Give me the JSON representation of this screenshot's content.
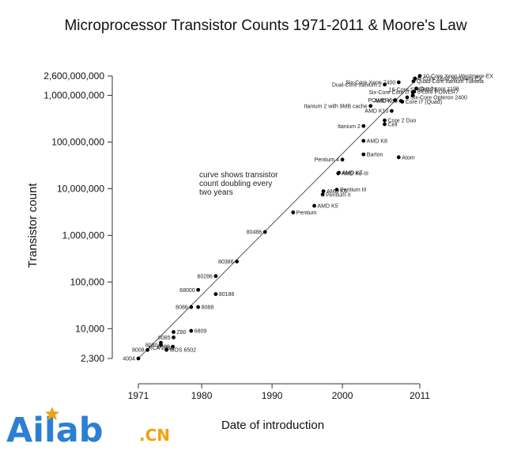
{
  "chart_data": {
    "type": "scatter",
    "title": "Microprocessor Transistor Counts 1971-2011 & Moore's Law",
    "xlabel": "Date of introduction",
    "ylabel": "Transistor count",
    "scale_y": "log",
    "xlim": [
      1971,
      2011
    ],
    "ylim": [
      2300,
      2600000000
    ],
    "x_ticks": [
      "1971",
      "1980",
      "1990",
      "2000",
      "2011"
    ],
    "x_tick_values": [
      1971,
      1980,
      1990,
      2000,
      2011
    ],
    "y_ticks": [
      "2,300",
      "10,000",
      "100,000",
      "1,000,000",
      "10,000,000",
      "100,000,000",
      "1,000,000,000",
      "2,600,000,000"
    ],
    "y_tick_values": [
      2300,
      10000,
      100000,
      1000000,
      10000000,
      100000000,
      1000000000,
      2600000000
    ],
    "annotation": [
      "curve shows transistor",
      "count doubling every",
      "two years"
    ],
    "trend": {
      "x": [
        1971,
        2011
      ],
      "y": [
        2300,
        2600000000
      ]
    },
    "grid": false,
    "points": [
      {
        "label": "4004",
        "x": 1971,
        "y": 2300,
        "side": "left"
      },
      {
        "label": "8008",
        "x": 1972.3,
        "y": 3500,
        "side": "left"
      },
      {
        "label": "8080",
        "x": 1974.2,
        "y": 4500,
        "side": "left"
      },
      {
        "label": "RCA 1802",
        "x": 1974.2,
        "y": 5000,
        "side": "below"
      },
      {
        "label": "MOS 6502",
        "x": 1975,
        "y": 3510,
        "side": "right"
      },
      {
        "label": "6800",
        "x": 1975.9,
        "y": 4100,
        "side": "left"
      },
      {
        "label": "Z80",
        "x": 1976,
        "y": 8500,
        "side": "right"
      },
      {
        "label": "8085",
        "x": 1976,
        "y": 6500,
        "side": "left"
      },
      {
        "label": "6809",
        "x": 1978.5,
        "y": 9000,
        "side": "right"
      },
      {
        "label": "8086",
        "x": 1978.5,
        "y": 29000,
        "side": "left"
      },
      {
        "label": "8088",
        "x": 1979.5,
        "y": 29000,
        "side": "right"
      },
      {
        "label": "68000",
        "x": 1979.5,
        "y": 68000,
        "side": "left"
      },
      {
        "label": "80186",
        "x": 1982,
        "y": 55000,
        "side": "right"
      },
      {
        "label": "80286",
        "x": 1982,
        "y": 134000,
        "side": "left"
      },
      {
        "label": "80386",
        "x": 1985,
        "y": 275000,
        "side": "left"
      },
      {
        "label": "80486",
        "x": 1989,
        "y": 1180000,
        "side": "left"
      },
      {
        "label": "Pentium",
        "x": 1993,
        "y": 3100000,
        "side": "right"
      },
      {
        "label": "AMD K5",
        "x": 1996,
        "y": 4300000,
        "side": "right"
      },
      {
        "label": "Pentium II",
        "x": 1997.2,
        "y": 7500000,
        "side": "right"
      },
      {
        "label": "AMD K6",
        "x": 1997.3,
        "y": 8800000,
        "side": "right"
      },
      {
        "label": "Pentium III",
        "x": 1999.2,
        "y": 9500000,
        "side": "right"
      },
      {
        "label": "AMD K6-III",
        "x": 1999.4,
        "y": 21300000,
        "side": "right"
      },
      {
        "label": "AMD K7",
        "x": 1999.5,
        "y": 22000000,
        "side": "right"
      },
      {
        "label": "Pentium 4",
        "x": 2000,
        "y": 42000000,
        "side": "left"
      },
      {
        "label": "Barton",
        "x": 2003,
        "y": 54300000,
        "side": "right"
      },
      {
        "label": "Atom",
        "x": 2008,
        "y": 47000000,
        "side": "right"
      },
      {
        "label": "AMD K8",
        "x": 2003,
        "y": 105900000,
        "side": "right"
      },
      {
        "label": "Itanium 2",
        "x": 2003,
        "y": 220000000,
        "side": "left"
      },
      {
        "label": "Cell",
        "x": 2006,
        "y": 241000000,
        "side": "right"
      },
      {
        "label": "Core 2 Duo",
        "x": 2006,
        "y": 291000000,
        "side": "right"
      },
      {
        "label": "AMD K10",
        "x": 2007,
        "y": 463000000,
        "side": "left"
      },
      {
        "label": "Itanium 2 with 9MB cache",
        "x": 2004,
        "y": 592000000,
        "side": "left"
      },
      {
        "label": "POWER6",
        "x": 2007.5,
        "y": 789000000,
        "side": "left"
      },
      {
        "label": "Core i7 (Quad)",
        "x": 2008.5,
        "y": 731000000,
        "side": "right"
      },
      {
        "label": "AMD K10",
        "x": 2008.3,
        "y": 758000000,
        "side": "left"
      },
      {
        "label": "Six-Core Opteron 2400",
        "x": 2009.2,
        "y": 904000000,
        "side": "right"
      },
      {
        "label": "8-Core Xeon Nehalem-EX",
        "x": 2010.3,
        "y": 2300000000,
        "side": "right"
      },
      {
        "label": "Quad-Core Itanium Tukwila",
        "x": 2010.1,
        "y": 2000000000,
        "side": "right"
      },
      {
        "label": "Quad-core z196",
        "x": 2010.5,
        "y": 1400000000,
        "side": "right"
      },
      {
        "label": "8-core POWER7",
        "x": 2010.2,
        "y": 1200000000,
        "side": "right"
      },
      {
        "label": "Dual-Core Itanium 2",
        "x": 2006,
        "y": 1700000000,
        "side": "left"
      },
      {
        "label": "Six-Core Xeon 7400",
        "x": 2008,
        "y": 1900000000,
        "side": "left"
      },
      {
        "label": "Six-Core Core i7",
        "x": 2010,
        "y": 1170000000,
        "side": "left"
      },
      {
        "label": "16-Core SPARC T3",
        "x": 2010,
        "y": 1000000000,
        "side": "above"
      },
      {
        "label": "10-Core Xeon Westmere-EX",
        "x": 2011,
        "y": 2600000000,
        "side": "right"
      }
    ]
  },
  "watermark": {
    "brand": "Ailab",
    "suffix": ".CN",
    "brand_color": "#2b7fd4",
    "star_color": "#f2a20c"
  }
}
